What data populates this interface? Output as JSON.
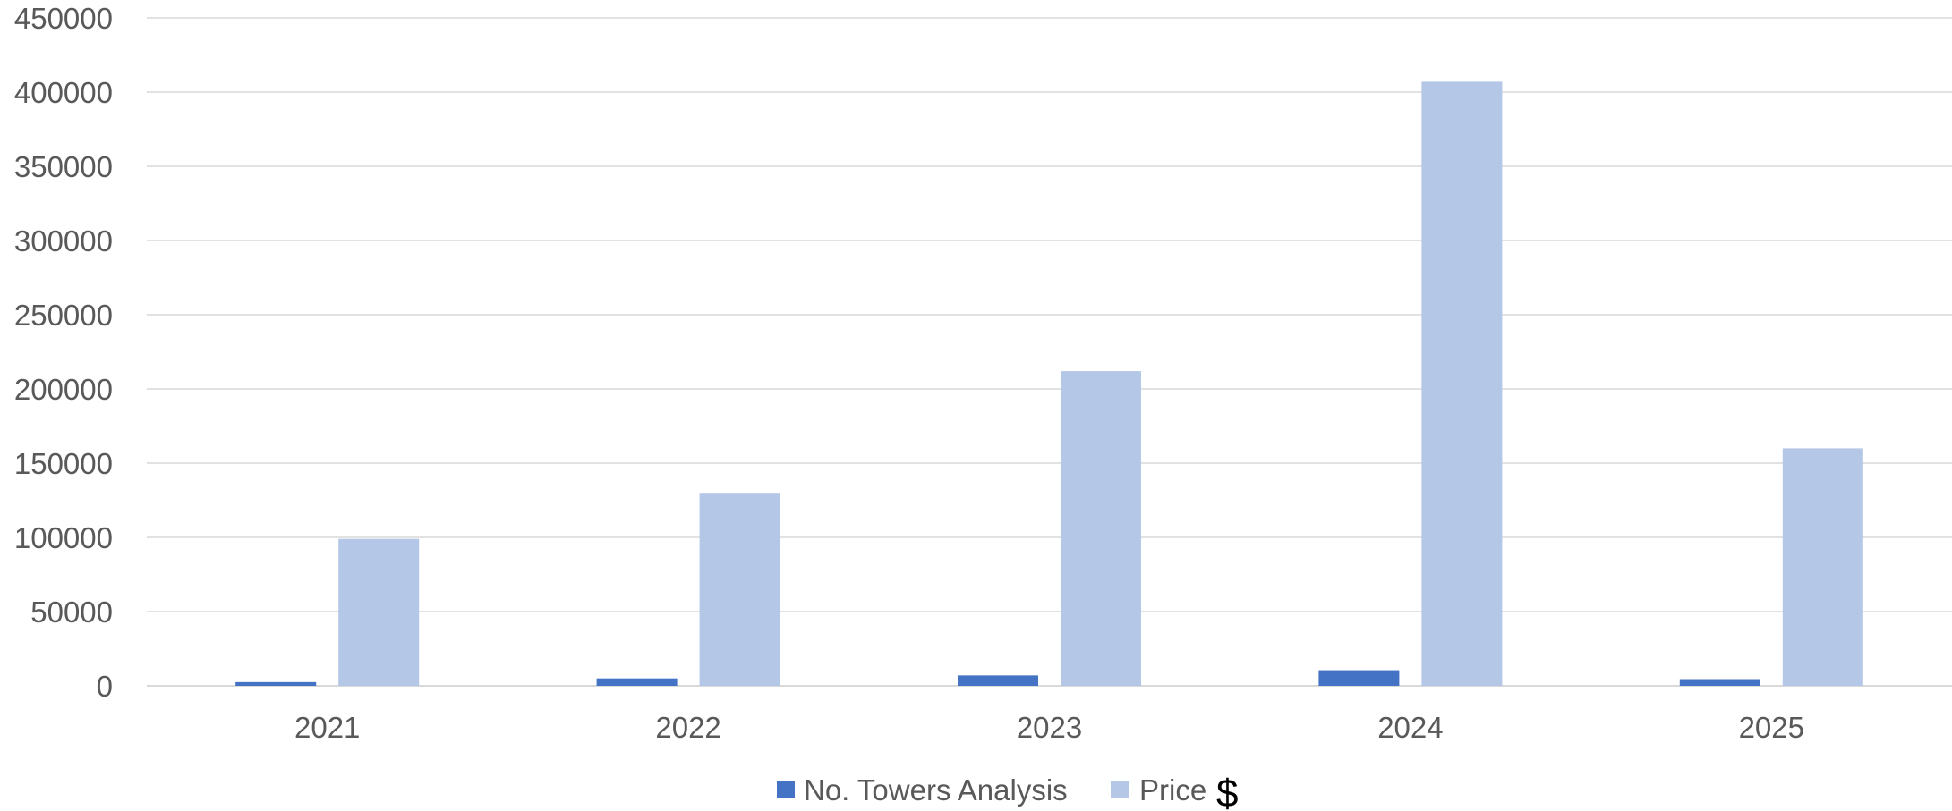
{
  "chart_data": {
    "type": "bar",
    "categories": [
      "2021",
      "2022",
      "2023",
      "2024",
      "2025"
    ],
    "series": [
      {
        "name": "No. Towers Analysis",
        "color": "#4472C4",
        "values": [
          2500,
          5000,
          7000,
          10500,
          4500
        ]
      },
      {
        "name": "Price",
        "color": "#B4C7E7",
        "values": [
          99000,
          130000,
          212000,
          407000,
          160000
        ]
      }
    ],
    "legend_suffix": "$",
    "title": "",
    "xlabel": "",
    "ylabel": "",
    "ylim": [
      0,
      450000
    ],
    "yticks": [
      0,
      50000,
      100000,
      150000,
      200000,
      250000,
      300000,
      350000,
      400000,
      450000
    ],
    "grid": true,
    "legend_position": "bottom-center",
    "gridline_color": "#D9D9D9"
  }
}
